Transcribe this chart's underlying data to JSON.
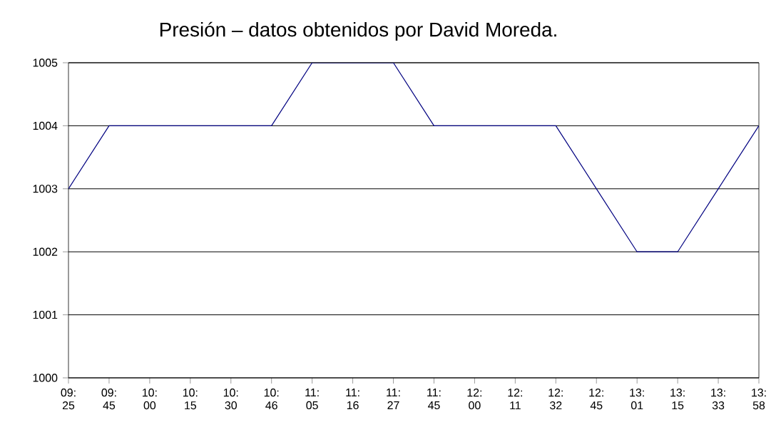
{
  "chart_data": {
    "type": "line",
    "title": "Presión – datos obtenidos por David Moreda.",
    "categories": [
      "09: 25",
      "09: 45",
      "10: 00",
      "10: 15",
      "10: 30",
      "10: 46",
      "11: 05",
      "11: 16",
      "11: 27",
      "11: 45",
      "12: 00",
      "12: 11",
      "12: 32",
      "12: 45",
      "13: 01",
      "13: 15",
      "13: 33",
      "13: 58"
    ],
    "series": [
      {
        "color": "#000080",
        "values": [
          1003,
          1004,
          1004,
          1004,
          1004,
          1004,
          1005,
          1005,
          1005,
          1004,
          1004,
          1004,
          1004,
          1003,
          1002,
          1002,
          1003,
          1004
        ]
      }
    ],
    "ylim": [
      1000,
      1005
    ],
    "yticks": [
      1000,
      1001,
      1002,
      1003,
      1004,
      1005
    ],
    "grid": "y",
    "marker": "none",
    "line_style": "solid"
  }
}
